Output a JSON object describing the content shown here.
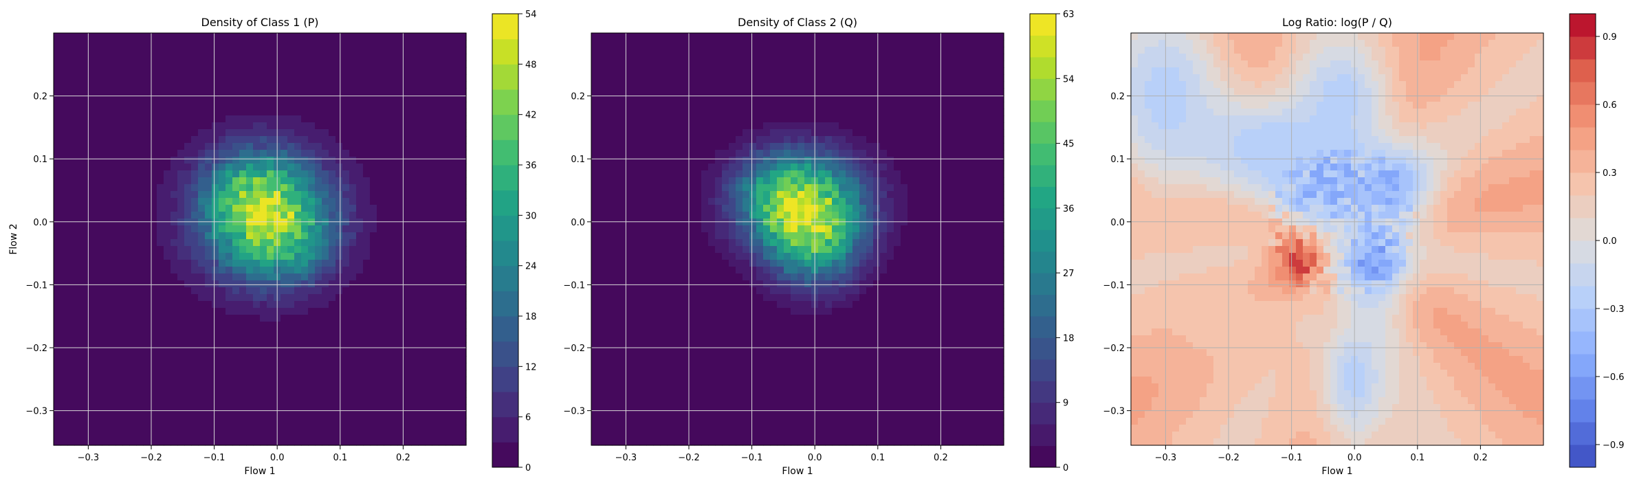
{
  "chart_data": [
    {
      "type": "heatmap",
      "title": "Density of Class 1 (P)",
      "xlabel": "Flow 1",
      "ylabel": "Flow 2",
      "xlim": [
        -0.355,
        0.3
      ],
      "ylim": [
        -0.355,
        0.3
      ],
      "xticks": [
        -0.3,
        -0.2,
        -0.1,
        0.0,
        0.1,
        0.2
      ],
      "yticks": [
        -0.3,
        -0.2,
        -0.1,
        0.0,
        0.1,
        0.2
      ],
      "grid": true,
      "colormap": "viridis",
      "colorbar": {
        "min": 0,
        "max": 54,
        "ticks": [
          0,
          6,
          12,
          18,
          24,
          30,
          36,
          42,
          48,
          54
        ],
        "levels": 18
      },
      "blobs": [
        {
          "x": -0.02,
          "y": 0.01,
          "sx": 0.075,
          "sy": 0.07,
          "peak": 0.85
        },
        {
          "x": -0.04,
          "y": 0.05,
          "sx": 0.045,
          "sy": 0.04,
          "peak": 0.2
        },
        {
          "x": 0.02,
          "y": -0.04,
          "sx": 0.05,
          "sy": 0.045,
          "peak": 0.18
        }
      ],
      "peak_value": 50
    },
    {
      "type": "heatmap",
      "title": "Density of Class 2 (Q)",
      "xlabel": "Flow 1",
      "ylabel": "",
      "xlim": [
        -0.355,
        0.3
      ],
      "ylim": [
        -0.355,
        0.3
      ],
      "xticks": [
        -0.3,
        -0.2,
        -0.1,
        0.0,
        0.1,
        0.2
      ],
      "yticks": [
        -0.3,
        -0.2,
        -0.1,
        0.0,
        0.1,
        0.2
      ],
      "grid": true,
      "colormap": "viridis",
      "colorbar": {
        "min": 0,
        "max": 63,
        "ticks": [
          0,
          9,
          18,
          27,
          36,
          45,
          54,
          63
        ],
        "levels": 21
      },
      "blobs": [
        {
          "x": -0.02,
          "y": 0.03,
          "sx": 0.07,
          "sy": 0.055,
          "peak": 0.8
        },
        {
          "x": 0.0,
          "y": -0.04,
          "sx": 0.05,
          "sy": 0.05,
          "peak": 0.45
        },
        {
          "x": -0.06,
          "y": 0.05,
          "sx": 0.04,
          "sy": 0.04,
          "peak": 0.15
        }
      ],
      "peak_value": 60
    },
    {
      "type": "heatmap",
      "title": "Log Ratio: log(P / Q)",
      "xlabel": "Flow 1",
      "ylabel": "",
      "xlim": [
        -0.355,
        0.3
      ],
      "ylim": [
        -0.355,
        0.3
      ],
      "xticks": [
        -0.3,
        -0.2,
        -0.1,
        0.0,
        0.1,
        0.2
      ],
      "yticks": [
        -0.3,
        -0.2,
        -0.1,
        0.0,
        0.1,
        0.2
      ],
      "grid": true,
      "colormap": "coolwarm",
      "colorbar": {
        "min": -1.0,
        "max": 1.0,
        "ticks": [
          -0.9,
          -0.6,
          -0.3,
          0.0,
          0.3,
          0.6,
          0.9
        ],
        "levels": 20
      },
      "background_value": 0.3,
      "features": [
        {
          "x": -0.09,
          "y": -0.06,
          "sx": 0.03,
          "sy": 0.035,
          "value": 0.95
        },
        {
          "x": -0.2,
          "y": -0.16,
          "sx": 0.09,
          "sy": 0.06,
          "value": 0.25
        },
        {
          "x": -0.05,
          "y": 0.07,
          "sx": 0.05,
          "sy": 0.05,
          "value": -0.65
        },
        {
          "x": 0.03,
          "y": -0.06,
          "sx": 0.04,
          "sy": 0.05,
          "value": -0.6
        },
        {
          "x": 0.05,
          "y": 0.06,
          "sx": 0.05,
          "sy": 0.045,
          "value": -0.5
        },
        {
          "x": -0.12,
          "y": 0.12,
          "sx": 0.1,
          "sy": 0.06,
          "value": -0.3
        },
        {
          "x": -0.02,
          "y": 0.2,
          "sx": 0.05,
          "sy": 0.06,
          "value": -0.25
        },
        {
          "x": 0.0,
          "y": -0.25,
          "sx": 0.04,
          "sy": 0.08,
          "value": -0.25
        },
        {
          "x": -0.3,
          "y": 0.2,
          "sx": 0.06,
          "sy": 0.1,
          "value": -0.25
        }
      ]
    }
  ]
}
